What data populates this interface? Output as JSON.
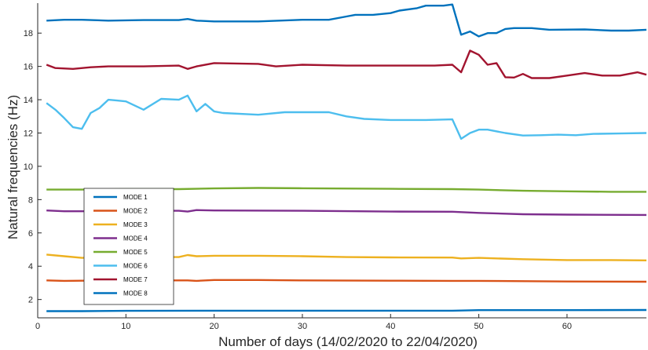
{
  "chart_data": {
    "type": "line",
    "xlabel": "Number of days (14/02/2020 to 22/04/2020)",
    "ylabel": "Natural frequencies (Hz)",
    "xlim": [
      0,
      69
    ],
    "ylim": [
      0.9,
      19.8
    ],
    "xticks": [
      0,
      10,
      20,
      30,
      40,
      50,
      60
    ],
    "yticks": [
      2,
      4,
      6,
      8,
      10,
      12,
      14,
      16,
      18
    ],
    "grid": false,
    "legend_position": "lower-left",
    "series": [
      {
        "name": "MODE 1",
        "color": "#0072BD",
        "points": [
          [
            1,
            1.3
          ],
          [
            5,
            1.3
          ],
          [
            10,
            1.32
          ],
          [
            20,
            1.33
          ],
          [
            30,
            1.33
          ],
          [
            40,
            1.33
          ],
          [
            47,
            1.33
          ],
          [
            50,
            1.36
          ],
          [
            60,
            1.36
          ],
          [
            69,
            1.37
          ]
        ]
      },
      {
        "name": "MODE 2",
        "color": "#D95319",
        "points": [
          [
            1,
            3.15
          ],
          [
            3,
            3.12
          ],
          [
            5,
            3.13
          ],
          [
            10,
            3.15
          ],
          [
            17,
            3.15
          ],
          [
            18,
            3.12
          ],
          [
            20,
            3.17
          ],
          [
            25,
            3.17
          ],
          [
            30,
            3.15
          ],
          [
            40,
            3.13
          ],
          [
            47,
            3.12
          ],
          [
            50,
            3.12
          ],
          [
            60,
            3.08
          ],
          [
            69,
            3.07
          ]
        ]
      },
      {
        "name": "MODE 3",
        "color": "#EDB120",
        "points": [
          [
            1,
            4.7
          ],
          [
            3,
            4.6
          ],
          [
            5,
            4.5
          ],
          [
            10,
            4.55
          ],
          [
            16,
            4.55
          ],
          [
            17,
            4.67
          ],
          [
            18,
            4.6
          ],
          [
            20,
            4.63
          ],
          [
            25,
            4.63
          ],
          [
            30,
            4.6
          ],
          [
            35,
            4.55
          ],
          [
            40,
            4.53
          ],
          [
            47,
            4.52
          ],
          [
            48,
            4.47
          ],
          [
            50,
            4.5
          ],
          [
            55,
            4.42
          ],
          [
            60,
            4.37
          ],
          [
            65,
            4.37
          ],
          [
            69,
            4.35
          ]
        ]
      },
      {
        "name": "MODE 4",
        "color": "#7E2F8E",
        "points": [
          [
            1,
            7.35
          ],
          [
            3,
            7.3
          ],
          [
            5,
            7.3
          ],
          [
            10,
            7.33
          ],
          [
            16,
            7.33
          ],
          [
            17,
            7.28
          ],
          [
            18,
            7.37
          ],
          [
            20,
            7.35
          ],
          [
            30,
            7.33
          ],
          [
            40,
            7.28
          ],
          [
            47,
            7.27
          ],
          [
            50,
            7.2
          ],
          [
            55,
            7.12
          ],
          [
            60,
            7.1
          ],
          [
            69,
            7.08
          ]
        ]
      },
      {
        "name": "MODE 5",
        "color": "#77AC30",
        "points": [
          [
            1,
            8.6
          ],
          [
            5,
            8.6
          ],
          [
            10,
            8.63
          ],
          [
            16,
            8.63
          ],
          [
            20,
            8.67
          ],
          [
            25,
            8.7
          ],
          [
            30,
            8.68
          ],
          [
            40,
            8.65
          ],
          [
            47,
            8.63
          ],
          [
            50,
            8.6
          ],
          [
            55,
            8.53
          ],
          [
            60,
            8.5
          ],
          [
            65,
            8.47
          ],
          [
            69,
            8.47
          ]
        ]
      },
      {
        "name": "MODE 6",
        "color": "#4DBEEE",
        "points": [
          [
            1,
            13.8
          ],
          [
            2,
            13.4
          ],
          [
            3,
            12.9
          ],
          [
            4,
            12.35
          ],
          [
            5,
            12.25
          ],
          [
            6,
            13.2
          ],
          [
            7,
            13.5
          ],
          [
            8,
            14.0
          ],
          [
            9,
            13.95
          ],
          [
            10,
            13.9
          ],
          [
            12,
            13.4
          ],
          [
            14,
            14.05
          ],
          [
            16,
            14.0
          ],
          [
            17,
            14.25
          ],
          [
            18,
            13.3
          ],
          [
            19,
            13.75
          ],
          [
            20,
            13.3
          ],
          [
            21,
            13.2
          ],
          [
            25,
            13.1
          ],
          [
            28,
            13.25
          ],
          [
            33,
            13.25
          ],
          [
            35,
            13.0
          ],
          [
            37,
            12.85
          ],
          [
            40,
            12.78
          ],
          [
            44,
            12.78
          ],
          [
            47,
            12.82
          ],
          [
            48,
            11.65
          ],
          [
            49,
            12.0
          ],
          [
            50,
            12.2
          ],
          [
            51,
            12.2
          ],
          [
            53,
            12.0
          ],
          [
            55,
            11.85
          ],
          [
            57,
            11.87
          ],
          [
            59,
            11.9
          ],
          [
            61,
            11.87
          ],
          [
            63,
            11.95
          ],
          [
            66,
            11.97
          ],
          [
            69,
            12.0
          ]
        ]
      },
      {
        "name": "MODE 7",
        "color": "#A2142F",
        "points": [
          [
            1,
            16.1
          ],
          [
            2,
            15.9
          ],
          [
            4,
            15.85
          ],
          [
            6,
            15.95
          ],
          [
            8,
            16.0
          ],
          [
            12,
            16.0
          ],
          [
            16,
            16.05
          ],
          [
            17,
            15.85
          ],
          [
            18,
            16.0
          ],
          [
            20,
            16.2
          ],
          [
            25,
            16.15
          ],
          [
            27,
            16.0
          ],
          [
            30,
            16.1
          ],
          [
            35,
            16.05
          ],
          [
            40,
            16.05
          ],
          [
            45,
            16.05
          ],
          [
            47,
            16.1
          ],
          [
            48,
            15.65
          ],
          [
            49,
            16.95
          ],
          [
            50,
            16.7
          ],
          [
            51,
            16.1
          ],
          [
            52,
            16.2
          ],
          [
            53,
            15.35
          ],
          [
            54,
            15.33
          ],
          [
            55,
            15.55
          ],
          [
            56,
            15.3
          ],
          [
            58,
            15.3
          ],
          [
            60,
            15.45
          ],
          [
            62,
            15.6
          ],
          [
            64,
            15.45
          ],
          [
            66,
            15.45
          ],
          [
            68,
            15.65
          ],
          [
            69,
            15.5
          ]
        ]
      },
      {
        "name": "MODE 8",
        "color": "#0072BD",
        "points": [
          [
            1,
            18.75
          ],
          [
            3,
            18.8
          ],
          [
            5,
            18.8
          ],
          [
            8,
            18.75
          ],
          [
            12,
            18.78
          ],
          [
            16,
            18.78
          ],
          [
            17,
            18.85
          ],
          [
            18,
            18.75
          ],
          [
            20,
            18.7
          ],
          [
            25,
            18.7
          ],
          [
            30,
            18.8
          ],
          [
            33,
            18.8
          ],
          [
            35,
            19.0
          ],
          [
            36,
            19.1
          ],
          [
            38,
            19.1
          ],
          [
            40,
            19.2
          ],
          [
            41,
            19.35
          ],
          [
            43,
            19.5
          ],
          [
            44,
            19.65
          ],
          [
            46,
            19.65
          ],
          [
            47,
            19.72
          ],
          [
            48,
            17.9
          ],
          [
            49,
            18.1
          ],
          [
            50,
            17.8
          ],
          [
            51,
            18.0
          ],
          [
            52,
            18.0
          ],
          [
            53,
            18.25
          ],
          [
            54,
            18.3
          ],
          [
            56,
            18.3
          ],
          [
            58,
            18.2
          ],
          [
            62,
            18.22
          ],
          [
            65,
            18.15
          ],
          [
            67,
            18.15
          ],
          [
            69,
            18.2
          ]
        ]
      }
    ]
  }
}
